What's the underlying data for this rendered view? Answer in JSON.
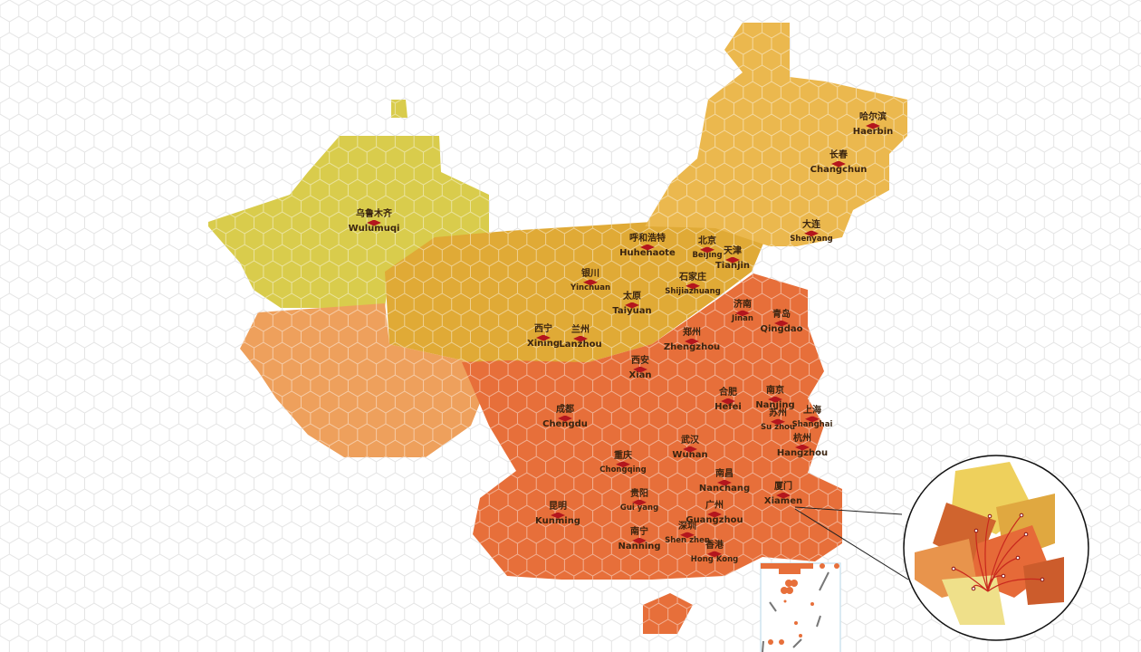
{
  "colors": {
    "xinjiang": "#d9cc4c",
    "tibet": "#eea05c",
    "north": "#e0aa36",
    "northeast": "#ebb84e",
    "south": "#e76f3a",
    "marker": "#b4161d",
    "grid": "#e2e2e2"
  },
  "cities": [
    {
      "cn": "哈尔滨",
      "en": "Haerbin"
    },
    {
      "cn": "长春",
      "en": "Changchun"
    },
    {
      "cn": "大连",
      "en": "Shenyang"
    },
    {
      "cn": "乌鲁木齐",
      "en": "Wulumuqi"
    },
    {
      "cn": "呼和浩特",
      "en": "Huhehaote"
    },
    {
      "cn": "北京",
      "en": "Beijing"
    },
    {
      "cn": "天津",
      "en": "Tianjin"
    },
    {
      "cn": "银川",
      "en": "Yinchuan"
    },
    {
      "cn": "石家庄",
      "en": "Shijiazhuang"
    },
    {
      "cn": "太原",
      "en": "Taiyuan"
    },
    {
      "cn": "济南",
      "en": "Jinan"
    },
    {
      "cn": "青岛",
      "en": "Qingdao"
    },
    {
      "cn": "西宁",
      "en": "Xining"
    },
    {
      "cn": "兰州",
      "en": "Lanzhou"
    },
    {
      "cn": "郑州",
      "en": "Zhengzhou"
    },
    {
      "cn": "西安",
      "en": "Xian"
    },
    {
      "cn": "合肥",
      "en": "Hefei"
    },
    {
      "cn": "南京",
      "en": "Nanjing"
    },
    {
      "cn": "苏州",
      "en": "Su zhou"
    },
    {
      "cn": "上海",
      "en": "Shanghai"
    },
    {
      "cn": "成都",
      "en": "Chengdu"
    },
    {
      "cn": "杭州",
      "en": "Hangzhou"
    },
    {
      "cn": "武汉",
      "en": "Wuhan"
    },
    {
      "cn": "重庆",
      "en": "Chongqing"
    },
    {
      "cn": "南昌",
      "en": "Nanchang"
    },
    {
      "cn": "厦门",
      "en": "Xiamen"
    },
    {
      "cn": "贵阳",
      "en": "Gui yang"
    },
    {
      "cn": "昆明",
      "en": "Kunming"
    },
    {
      "cn": "广州",
      "en": "Guangzhou"
    },
    {
      "cn": "深圳",
      "en": "Shen zhen"
    },
    {
      "cn": "南宁",
      "en": "Nanning"
    },
    {
      "cn": "香港",
      "en": "Hong Kong"
    }
  ]
}
